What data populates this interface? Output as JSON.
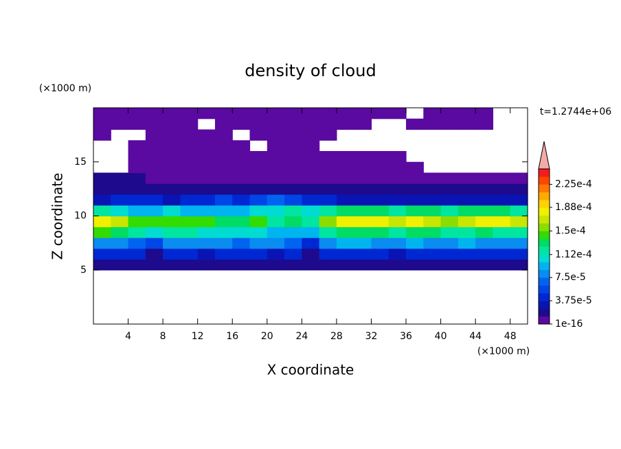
{
  "chart_data": {
    "type": "contour",
    "title": "density of cloud",
    "x_label": "X coordinate",
    "y_label": "Z coordinate",
    "x_unit": "(×1000 m)",
    "y_unit": "(×1000 m)",
    "time_label": "t=1.2744e+06",
    "xlim": [
      0,
      50
    ],
    "ylim": [
      0,
      20
    ],
    "xticks": [
      4,
      8,
      12,
      16,
      20,
      24,
      28,
      32,
      36,
      40,
      44,
      48
    ],
    "yticks": [
      5,
      10,
      15
    ],
    "clim": [
      1e-16,
      0.00025
    ],
    "cticks": [
      1e-16,
      {
        "value": 3.75e-05,
        "label": "3.75e-5"
      },
      {
        "value": 7.5e-05,
        "label": "7.5e-5"
      },
      {
        "value": 0.000112,
        "label": "1.12e-4"
      },
      {
        "value": 0.00015,
        "label": "1.5e-4"
      },
      {
        "value": 0.000188,
        "label": "1.88e-4"
      },
      {
        "value": 0.000225,
        "label": "2.25e-4"
      }
    ],
    "colors": [
      "#5a0aa0",
      "#1e0a8c",
      "#0a14b4",
      "#0028d2",
      "#0046e6",
      "#0064f0",
      "#0a8cf0",
      "#00b4f0",
      "#00dcd2",
      "#00e6a0",
      "#00dc64",
      "#32dc00",
      "#8cdc00",
      "#c8e600",
      "#f0f000",
      "#ffd200",
      "#ffaa00",
      "#ff7800",
      "#ff4600",
      "#f01e1e"
    ],
    "extend_color": "#f5aaaa",
    "x": [
      1,
      3,
      5,
      7,
      9,
      11,
      13,
      15,
      17,
      19,
      21,
      23,
      25,
      27,
      29,
      31,
      33,
      35,
      37,
      39,
      41,
      43,
      45,
      47,
      49
    ],
    "y": [
      5.5,
      6.5,
      7.5,
      8.5,
      9.5,
      10.5,
      11.5,
      12.5,
      13.5,
      14.5,
      15.5,
      16.5,
      17.5,
      18.5,
      19.5
    ],
    "values": [
      [
        1.5e-05,
        1.5e-05,
        1.5e-05,
        2e-05,
        1.5e-05,
        1.5e-05,
        1.5e-05,
        1.5e-05,
        1.5e-05,
        1.5e-05,
        1.5e-05,
        2e-05,
        1.5e-05,
        1.5e-05,
        1.5e-05,
        1.5e-05,
        1.5e-05,
        1.5e-05,
        1.5e-05,
        1.5e-05,
        1.5e-05,
        1.5e-05,
        1.5e-05,
        2e-05,
        1.5e-05
      ],
      [
        4e-05,
        4e-05,
        4e-05,
        2e-05,
        4e-05,
        4e-05,
        3e-05,
        4e-05,
        4e-05,
        4e-05,
        3e-05,
        4e-05,
        2e-05,
        4e-05,
        4e-05,
        4e-05,
        4e-05,
        3e-05,
        4e-05,
        4e-05,
        4e-05,
        4e-05,
        4e-05,
        4e-05,
        4e-05
      ],
      [
        8e-05,
        8e-05,
        7e-05,
        6e-05,
        8e-05,
        8e-05,
        8e-05,
        8e-05,
        7e-05,
        8e-05,
        8e-05,
        7e-05,
        5e-05,
        8e-05,
        9e-05,
        9e-05,
        8e-05,
        8e-05,
        9e-05,
        8e-05,
        8e-05,
        9e-05,
        8e-05,
        8e-05,
        8e-05
      ],
      [
        0.00014,
        0.00013,
        0.00012,
        0.00011,
        0.00012,
        0.00012,
        0.00011,
        0.00011,
        0.00011,
        0.00011,
        0.0001,
        0.0001,
        0.0001,
        0.00012,
        0.00013,
        0.00013,
        0.00013,
        0.00012,
        0.00013,
        0.00013,
        0.00012,
        0.00012,
        0.00013,
        0.00012,
        0.00012
      ],
      [
        0.000185,
        0.00017,
        0.00015,
        0.00014,
        0.00014,
        0.00015,
        0.00014,
        0.00013,
        0.00013,
        0.00014,
        0.00012,
        0.00013,
        0.00012,
        0.00016,
        0.00018,
        0.000185,
        0.00018,
        0.00017,
        0.00018,
        0.00017,
        0.00016,
        0.00017,
        0.000185,
        0.00018,
        0.00017
      ],
      [
        0.00012,
        0.00011,
        0.0001,
        0.0001,
        0.00011,
        0.0001,
        9e-05,
        0.0001,
        0.0001,
        0.00011,
        0.00011,
        0.00012,
        0.00011,
        0.00012,
        0.00013,
        0.00013,
        0.00013,
        0.00012,
        0.00013,
        0.00013,
        0.00012,
        0.00013,
        0.00013,
        0.00013,
        0.00012
      ],
      [
        3e-05,
        4e-05,
        4e-05,
        4e-05,
        3e-05,
        4e-05,
        5e-05,
        6e-05,
        5e-05,
        6e-05,
        7e-05,
        6e-05,
        5e-05,
        4e-05,
        3e-05,
        3e-05,
        3e-05,
        3e-05,
        3e-05,
        3e-05,
        3e-05,
        3e-05,
        3e-05,
        3e-05,
        3e-05
      ],
      [
        2e-05,
        2e-05,
        2e-05,
        1.5e-05,
        2e-05,
        2e-05,
        2e-05,
        2e-05,
        2e-05,
        2e-05,
        2e-05,
        2e-05,
        2e-05,
        1.5e-05,
        2e-05,
        2e-05,
        2e-05,
        2e-05,
        2e-05,
        2e-05,
        2e-05,
        1.5e-05,
        2e-05,
        2e-05,
        2e-05
      ],
      [
        1.5e-05,
        1.5e-05,
        1.5e-05,
        1e-05,
        1e-05,
        1e-05,
        8e-06,
        1e-05,
        1e-05,
        1e-05,
        8e-06,
        1e-05,
        1e-05,
        1e-05,
        1e-05,
        8e-06,
        1e-05,
        1e-05,
        1e-05,
        1e-05,
        8e-06,
        8e-06,
        8e-06,
        8e-06,
        8e-06
      ],
      [
        null,
        null,
        4e-06,
        4e-06,
        4e-06,
        4e-06,
        4e-06,
        4e-06,
        4e-06,
        4e-06,
        4e-06,
        4e-06,
        4e-06,
        4e-06,
        4e-06,
        4e-06,
        4e-06,
        4e-06,
        4e-06,
        null,
        null,
        null,
        null,
        null,
        null
      ],
      [
        null,
        null,
        4e-06,
        4e-06,
        4e-06,
        4e-06,
        4e-06,
        4e-06,
        4e-06,
        4e-06,
        4e-06,
        4e-06,
        4e-06,
        4e-06,
        4e-06,
        4e-06,
        4e-06,
        4e-06,
        null,
        null,
        null,
        null,
        null,
        null,
        null
      ],
      [
        null,
        null,
        4e-06,
        4e-06,
        4e-06,
        4e-06,
        4e-06,
        4e-06,
        4e-06,
        null,
        4e-06,
        4e-06,
        4e-06,
        null,
        null,
        null,
        null,
        null,
        null,
        null,
        null,
        null,
        null,
        null,
        null
      ],
      [
        4e-06,
        null,
        null,
        4e-06,
        4e-06,
        4e-06,
        4e-06,
        4e-06,
        null,
        4e-06,
        4e-06,
        4e-06,
        4e-06,
        4e-06,
        null,
        null,
        null,
        null,
        null,
        null,
        null,
        null,
        null,
        null,
        null
      ],
      [
        4e-06,
        4e-06,
        4e-06,
        4e-06,
        4e-06,
        4e-06,
        null,
        4e-06,
        4e-06,
        4e-06,
        4e-06,
        4e-06,
        4e-06,
        4e-06,
        4e-06,
        4e-06,
        null,
        null,
        4e-06,
        4e-06,
        4e-06,
        4e-06,
        4e-06,
        null,
        null
      ],
      [
        4e-06,
        4e-06,
        4e-06,
        4e-06,
        4e-06,
        4e-06,
        4e-06,
        4e-06,
        4e-06,
        4e-06,
        4e-06,
        4e-06,
        4e-06,
        4e-06,
        4e-06,
        4e-06,
        4e-06,
        4e-06,
        null,
        4e-06,
        4e-06,
        4e-06,
        4e-06,
        null,
        null
      ]
    ]
  }
}
